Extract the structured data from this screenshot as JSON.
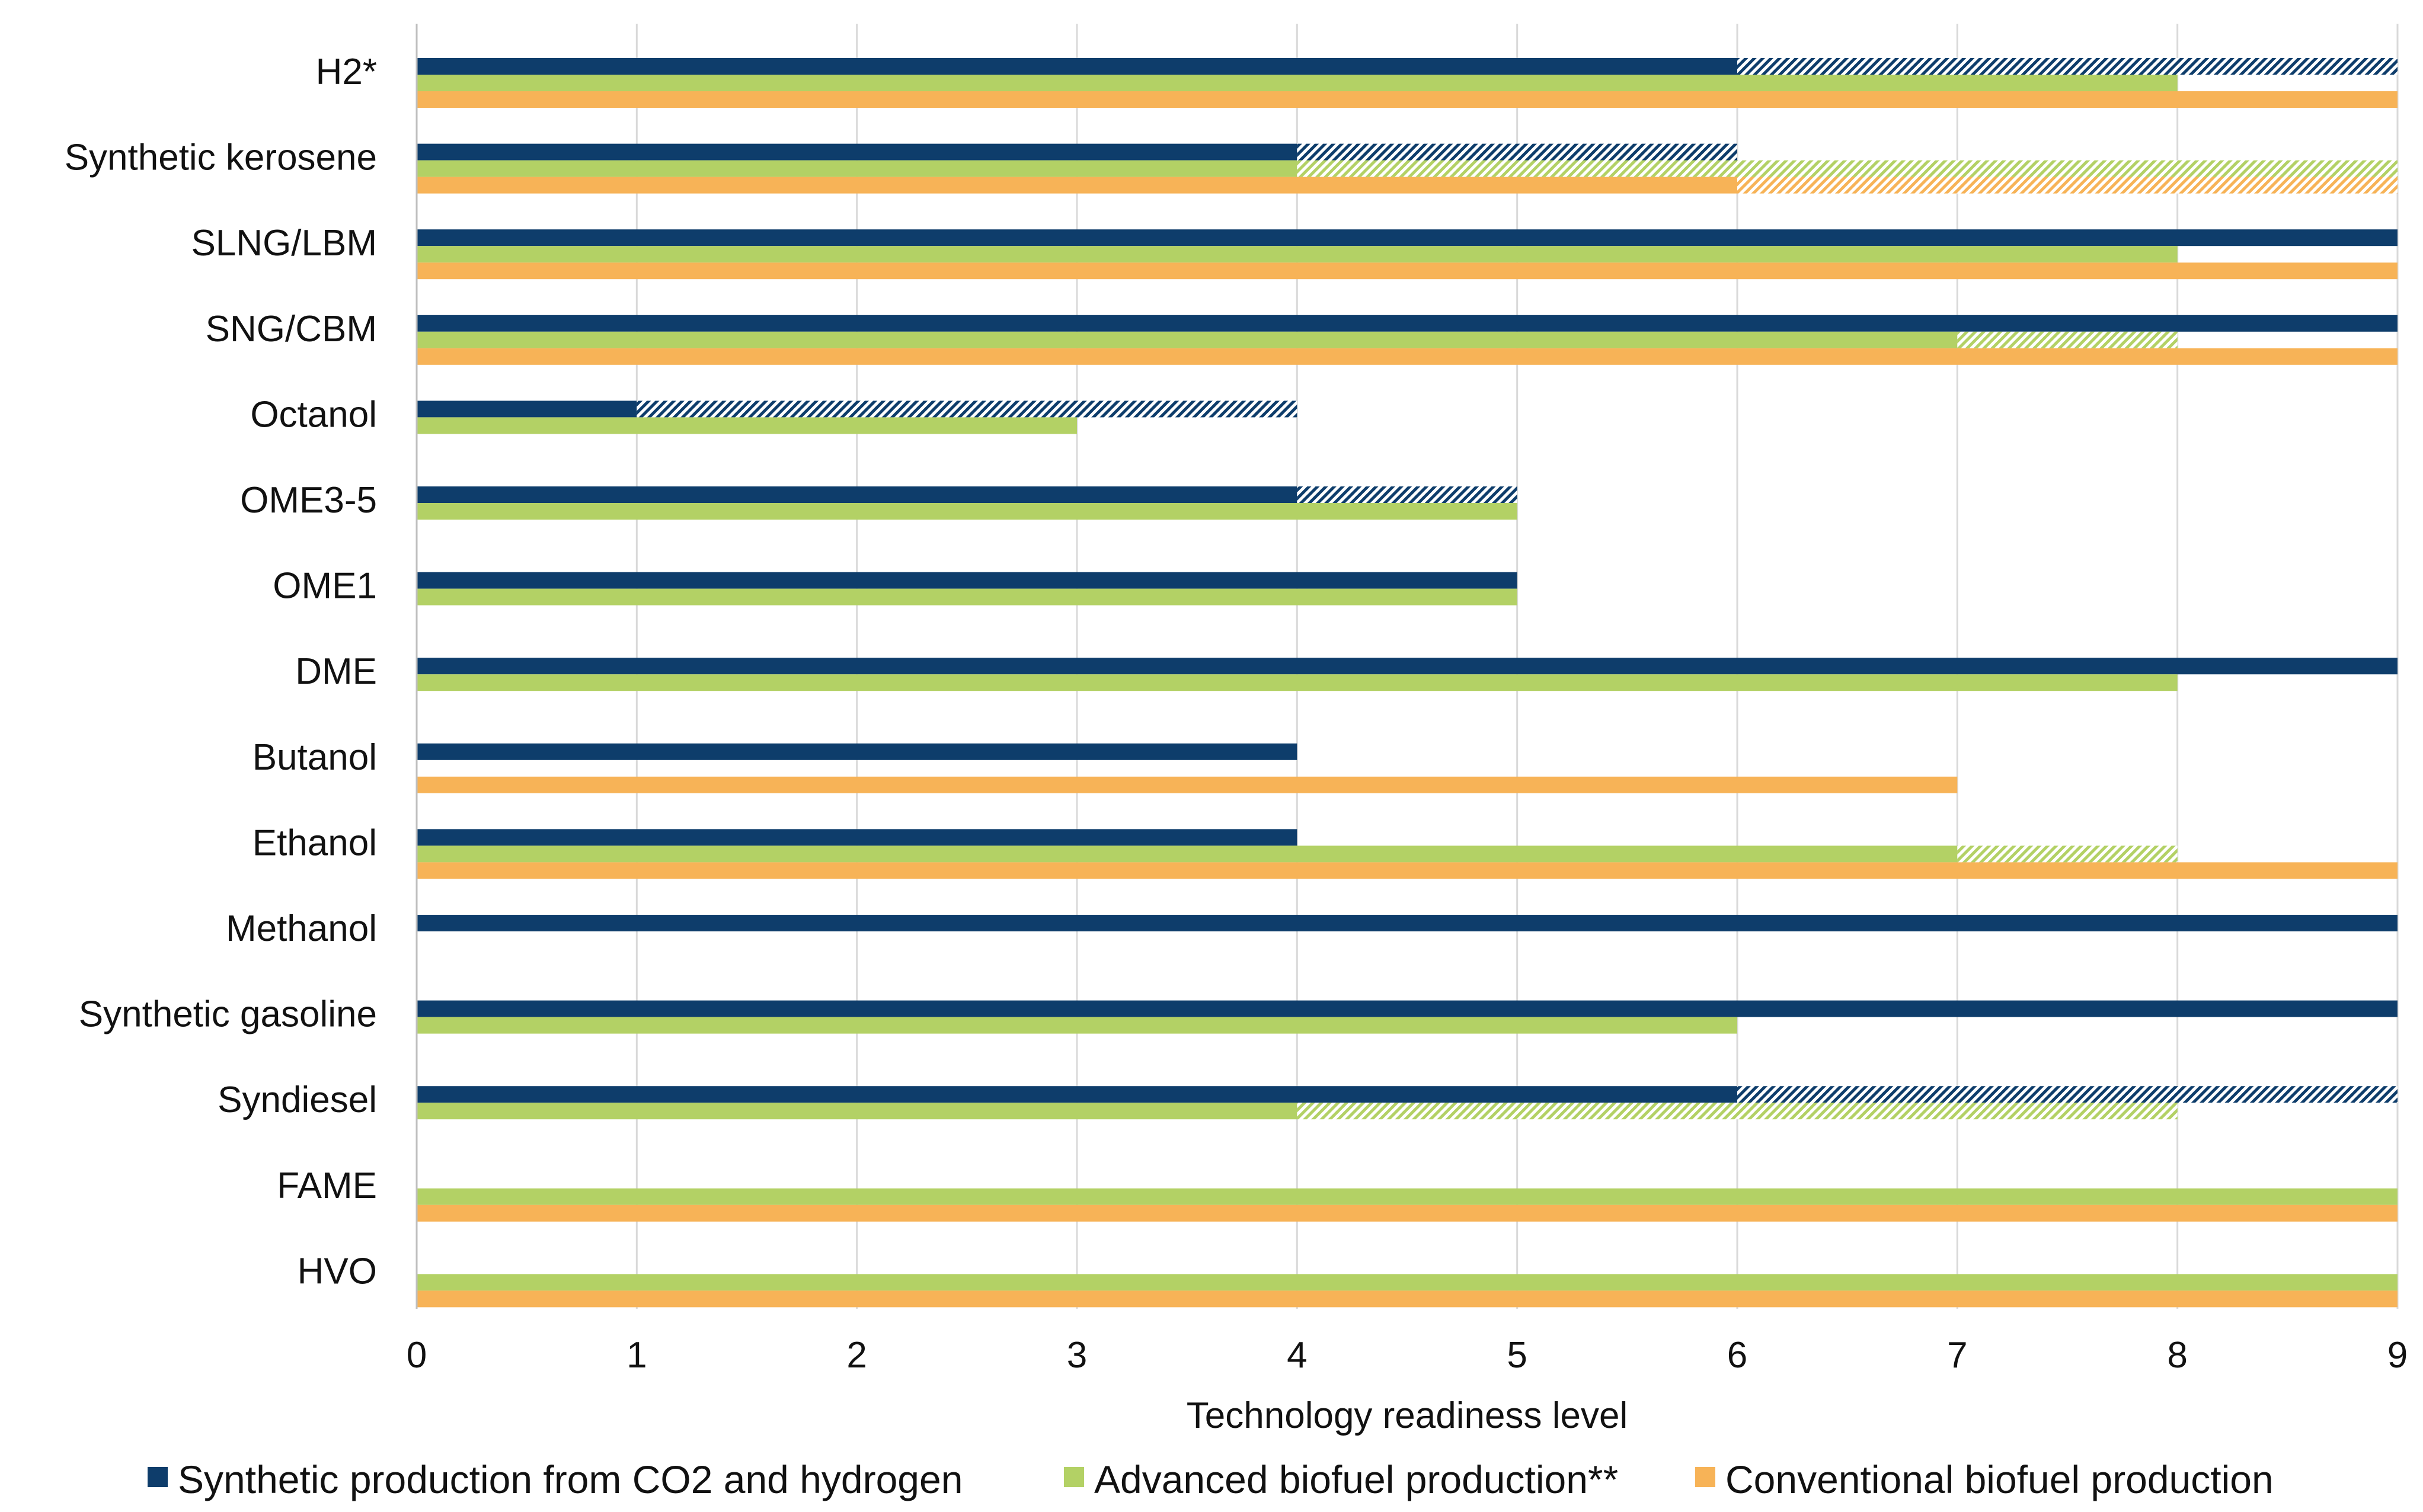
{
  "chart_data": {
    "type": "bar",
    "orientation": "horizontal",
    "title": "",
    "xlabel": "Technology readiness level",
    "ylabel": "",
    "xlim": [
      0,
      9
    ],
    "xticks": [
      "0",
      "1",
      "2",
      "3",
      "4",
      "5",
      "6",
      "7",
      "8",
      "9"
    ],
    "grid": "vertical",
    "legend_position": "bottom",
    "categories": [
      "H2*",
      "Synthetic kerosene",
      "SLNG/LBM",
      "SNG/CBM",
      "Octanol",
      "OME3-5",
      "OME1",
      "DME",
      "Butanol",
      "Ethanol",
      "Methanol",
      "Synthetic gasoline",
      "Syndiesel",
      "FAME",
      "HVO"
    ],
    "series": [
      {
        "name": "Synthetic production from CO2 and hydrogen",
        "color": "#0e3d6b",
        "values": [
          6,
          4,
          9,
          9,
          1,
          4,
          5,
          9,
          4,
          4,
          9,
          9,
          6,
          null,
          null
        ],
        "range_max": [
          9,
          6,
          null,
          null,
          4,
          5,
          null,
          null,
          null,
          null,
          null,
          null,
          9,
          null,
          null
        ]
      },
      {
        "name": "Advanced biofuel production**",
        "color": "#b3d165",
        "values": [
          8,
          4,
          8,
          7,
          3,
          5,
          5,
          8,
          null,
          7,
          null,
          6,
          4,
          9,
          9
        ],
        "range_max": [
          null,
          9,
          null,
          8,
          null,
          null,
          null,
          null,
          null,
          8,
          null,
          null,
          8,
          null,
          null
        ]
      },
      {
        "name": "Conventional biofuel production",
        "color": "#f7b357",
        "values": [
          9,
          6,
          9,
          9,
          null,
          null,
          null,
          null,
          7,
          9,
          null,
          null,
          null,
          9,
          9
        ],
        "range_max": [
          null,
          9,
          null,
          null,
          null,
          null,
          null,
          null,
          null,
          null,
          null,
          null,
          null,
          null,
          null
        ]
      }
    ]
  }
}
